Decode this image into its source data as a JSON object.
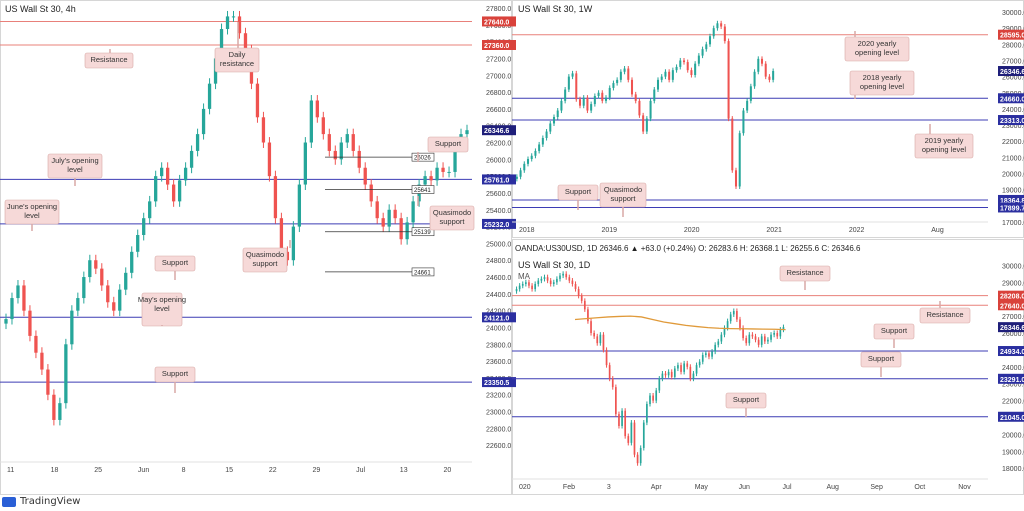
{
  "branding": "TradingView",
  "colors": {
    "bull": "#26a69a",
    "bear": "#ef5350",
    "red_level": "#e8807a",
    "blue_level": "#3c3cb4",
    "callout_bg": "#f6d9d8",
    "callout_border": "#d8a9a6",
    "ma": "#e09a3a",
    "red_tag": "#d9423b",
    "blue_tag": "#2b2fa0",
    "price_tag": "#1f1f7a"
  },
  "chart_data": [
    {
      "type": "candlestick",
      "title": "US Wall St 30, 4h",
      "ylim": [
        22400,
        27800
      ],
      "yticks": [
        "27800.0",
        "27600.0",
        "27400.0",
        "27200.0",
        "27000.0",
        "26800.0",
        "26600.0",
        "26400.0",
        "26200.0",
        "26000.0",
        "25800.0",
        "25600.0",
        "25400.0",
        "25200.0",
        "25000.0",
        "24800.0",
        "24600.0",
        "24400.0",
        "24200.0",
        "24000.0",
        "23800.0",
        "23600.0",
        "23400.0",
        "23200.0",
        "23000.0",
        "22800.0",
        "22600.0"
      ],
      "xticks": [
        "11",
        "18",
        "25",
        "Jun",
        "8",
        "15",
        "22",
        "29",
        "Jul",
        "13",
        "20"
      ],
      "series": [
        {
          "close": [
            24100,
            24350,
            24500,
            24200,
            23900,
            23700,
            23500,
            23200,
            22900,
            23100,
            23800,
            24200,
            24350,
            24600,
            24800,
            24700,
            24500,
            24300,
            24200,
            24450,
            24650,
            24900,
            25100,
            25300,
            25500,
            25800,
            25900,
            25700,
            25500,
            25750,
            25900,
            26100,
            26300,
            26600,
            26900,
            27200,
            27550,
            27700,
            27700,
            27500,
            27300,
            26900,
            26500,
            26200,
            25800,
            25300,
            24900,
            24800,
            25200,
            25700,
            26200,
            26700,
            26500,
            26300,
            26100,
            26000,
            26200,
            26300,
            26100,
            25900,
            25700,
            25500,
            25300,
            25200,
            25400,
            25300,
            25050,
            25250,
            25500,
            25700,
            25800,
            25750,
            25900,
            25850,
            25850,
            26200,
            26300,
            26346.6
          ]
        }
      ],
      "levels": [
        {
          "value": 27640.0,
          "label": "27640.0",
          "kind": "resistance"
        },
        {
          "value": 27360.0,
          "label": "27360.0",
          "kind": "resistance"
        },
        {
          "value": 26346.6,
          "label": "26346.6",
          "kind": "price"
        },
        {
          "value": 25761.0,
          "label": "25761.0",
          "kind": "blue"
        },
        {
          "value": 25232.0,
          "label": "25232.0",
          "kind": "blue"
        },
        {
          "value": 24121.0,
          "label": "24121.0",
          "kind": "blue"
        },
        {
          "value": 23350.5,
          "label": "23350.5",
          "kind": "blue"
        }
      ],
      "boxes": [
        {
          "value": 26026,
          "label": "26026"
        },
        {
          "value": 25641,
          "label": "25641"
        },
        {
          "value": 25139,
          "label": "25139"
        },
        {
          "value": 24661,
          "label": "24661"
        }
      ],
      "annotations": [
        "Resistance",
        "Daily resistance",
        "Support",
        "July's opening level",
        "June's opening level",
        "Quasimodo support",
        "Quasimodo support",
        "Support",
        "May's opening level",
        "Support"
      ]
    },
    {
      "type": "candlestick",
      "title": "US Wall St 30, 1W",
      "ylim": [
        17000,
        30000
      ],
      "yticks": [
        "30000.0",
        "29000.0",
        "28000.0",
        "27000.0",
        "26000.0",
        "25000.0",
        "24000.0",
        "23000.0",
        "22000.0",
        "21000.0",
        "20000.0",
        "19000.0",
        "18000.0",
        "17000.0"
      ],
      "xticks": [
        "2018",
        "2019",
        "2020",
        "2021",
        "2022",
        "Aug"
      ],
      "series": [
        {
          "close": [
            19800,
            20200,
            20600,
            20900,
            21100,
            21400,
            21800,
            22200,
            22600,
            23100,
            23500,
            23900,
            24500,
            25200,
            26000,
            26200,
            24600,
            24200,
            24700,
            23900,
            24300,
            24800,
            25000,
            24500,
            24700,
            25300,
            25600,
            25800,
            26300,
            26500,
            25800,
            24900,
            24500,
            23600,
            22600,
            23400,
            24500,
            25200,
            25800,
            26000,
            26300,
            25800,
            26400,
            26600,
            27000,
            26900,
            26400,
            26100,
            26800,
            27300,
            27700,
            28000,
            28500,
            29000,
            29300,
            29100,
            28200,
            23400,
            20200,
            19200,
            22500,
            23900,
            24500,
            25400,
            26300,
            27100,
            26800,
            26000,
            25800,
            26346.6
          ]
        }
      ],
      "levels": [
        {
          "value": 28595.0,
          "label": "28595.0",
          "kind": "resistance"
        },
        {
          "value": 26346.6,
          "label": "26346.6",
          "kind": "price"
        },
        {
          "value": 24660.0,
          "label": "24660.0",
          "kind": "blue"
        },
        {
          "value": 23313.0,
          "label": "23313.0",
          "kind": "blue"
        },
        {
          "value": 18364.8,
          "label": "18364.8",
          "kind": "blue"
        },
        {
          "value": 17899.7,
          "label": "17899.7",
          "kind": "blue"
        }
      ],
      "annotations": [
        "2020 yearly opening level",
        "2018 yearly opening level",
        "2019 yearly opening level",
        "Support",
        "Quasimodo support"
      ]
    },
    {
      "type": "candlestick",
      "title": "US Wall St 30, 1D",
      "symbol_line": "OANDA:US30USD, 1D  26346.6  ▲ +63.0 (+0.24%)  O: 26283.6  H: 26368.1  L: 26255.6  C: 26346.6",
      "legend": [
        "MA"
      ],
      "ylim": [
        17600,
        30200
      ],
      "yticks": [
        "30000.0",
        "29000.0",
        "28000.0",
        "27000.0",
        "26000.0",
        "25000.0",
        "24000.0",
        "23000.0",
        "22000.0",
        "21000.0",
        "20000.0",
        "19000.0",
        "18000.0"
      ],
      "xticks": [
        "020",
        "Feb",
        "3",
        "Apr",
        "May",
        "Jun",
        "Jul",
        "Aug",
        "Sep",
        "Oct",
        "Nov"
      ],
      "series": [
        {
          "name": "price",
          "close": [
            28600,
            28800,
            28900,
            29000,
            28800,
            28600,
            28900,
            29100,
            29200,
            29300,
            29100,
            28900,
            29000,
            29200,
            29400,
            29500,
            29300,
            29100,
            28900,
            28600,
            28200,
            27900,
            27400,
            26700,
            26000,
            25800,
            25400,
            25900,
            25000,
            24100,
            23300,
            22800,
            21200,
            20500,
            21400,
            19900,
            19500,
            20700,
            18800,
            18300,
            19200,
            20700,
            21800,
            22300,
            22000,
            22600,
            23300,
            23600,
            23500,
            23700,
            23400,
            23900,
            24100,
            23700,
            24200,
            24000,
            23300,
            23600,
            24100,
            24300,
            24700,
            24800,
            24600,
            24900,
            25300,
            25500,
            25900,
            26300,
            26700,
            27100,
            27300,
            26800,
            26300,
            25700,
            25400,
            25900,
            25800,
            25600,
            25300,
            25800,
            25500,
            25600,
            25900,
            26000,
            25800,
            26200,
            26346.6
          ]
        },
        {
          "name": "MA",
          "close": [
            26800,
            26850,
            26900,
            26950,
            26980,
            27000,
            26950,
            26800,
            26650,
            26550,
            26450,
            26380,
            26320,
            26280,
            26260,
            26250,
            26240,
            26230,
            26220,
            26200
          ]
        }
      ],
      "levels": [
        {
          "value": 28208.0,
          "label": "28208.0",
          "kind": "resistance"
        },
        {
          "value": 27640.0,
          "label": "27640.0",
          "kind": "resistance"
        },
        {
          "value": 26346.6,
          "label": "26346.6",
          "kind": "price"
        },
        {
          "value": 24934.0,
          "label": "24934.0",
          "kind": "blue"
        },
        {
          "value": 23291.0,
          "label": "23291.0",
          "kind": "blue"
        },
        {
          "value": 21045.0,
          "label": "21045.0",
          "kind": "blue"
        }
      ],
      "annotations": [
        "Resistance",
        "Resistance",
        "Support",
        "Support",
        "Support"
      ]
    }
  ]
}
